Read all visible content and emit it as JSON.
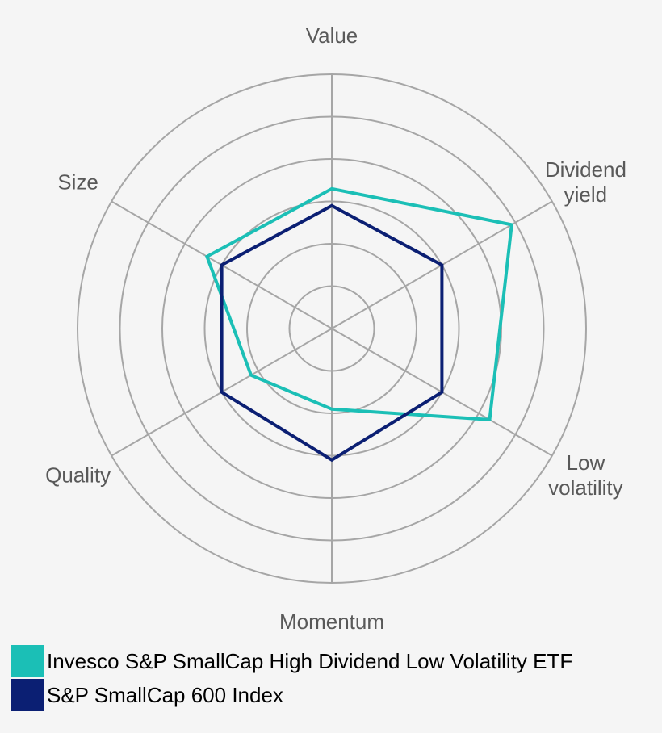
{
  "chart_data": {
    "type": "radar",
    "axes": [
      {
        "key": "value",
        "lines": [
          "Value"
        ]
      },
      {
        "key": "dividend-yield",
        "lines": [
          "Dividend",
          "yield"
        ]
      },
      {
        "key": "low-volatility",
        "lines": [
          "Low",
          "volatility"
        ]
      },
      {
        "key": "momentum",
        "lines": [
          "Momentum"
        ]
      },
      {
        "key": "quality",
        "lines": [
          "Quality"
        ]
      },
      {
        "key": "size",
        "lines": [
          "Size"
        ]
      }
    ],
    "rings": 6,
    "range": [
      0,
      6
    ],
    "series": [
      {
        "name": "Invesco S&P SmallCap High Dividend Low Volatility ETF",
        "color": "#1bbfb6",
        "values": [
          3.3,
          4.9,
          4.3,
          1.9,
          2.2,
          3.4
        ]
      },
      {
        "name": "S&P SmallCap 600 Index",
        "color": "#0b1f73",
        "values": [
          2.9,
          3.0,
          3.0,
          3.1,
          3.0,
          3.0
        ]
      }
    ],
    "grid_color": "#a6a6a6"
  },
  "legend": {
    "items": [
      {
        "label": "Invesco S&P SmallCap High Dividend Low Volatility ETF",
        "color": "#1bbfb6"
      },
      {
        "label": "S&P SmallCap 600 Index",
        "color": "#0b1f73"
      }
    ]
  }
}
